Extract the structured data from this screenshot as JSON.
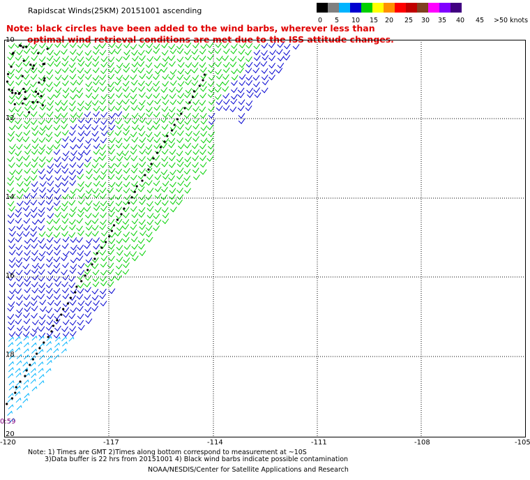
{
  "header": {
    "title": "Rapidscat Winds(25KM) 20151001 ascending",
    "note_line1": "Note: black circles have been added to the wind barbs, wherever less than",
    "note_line2": "optimal wind retrieval conditions are met due to the ISS attitude changes."
  },
  "legend": {
    "labels": [
      "0",
      "5",
      "10",
      "15",
      "20",
      "25",
      "30",
      "35",
      "40",
      "45",
      ">50 knots"
    ],
    "colors": [
      "#000000",
      "#808080",
      "#00b4ff",
      "#0000d0",
      "#00d000",
      "#ffff00",
      "#ff9000",
      "#ff0000",
      "#c00000",
      "#804020",
      "#ff00ff",
      "#8000ff",
      "#400080"
    ]
  },
  "map": {
    "lon_labels": [
      "-120",
      "-117",
      "-114",
      "-111",
      "-108",
      "-105"
    ],
    "lat_labels": [
      "10",
      "12",
      "14",
      "16",
      "18",
      "20"
    ],
    "time_label": "0:59",
    "colors": {
      "dark_blue": "#0000d0",
      "green": "#00d000",
      "light_blue": "#00b4ff",
      "black": "#000000",
      "grid": "#000000"
    }
  },
  "footer": {
    "line1": "Note: 1) Times are GMT 2)Times along bottom correspond to measurement at ~10S",
    "line2": "3)Data buffer is 22 hrs from 20151001 4) Black wind barbs indicate possible contamination",
    "credit": "NOAA/NESDIS/Center for Satellite Applications and Research"
  }
}
